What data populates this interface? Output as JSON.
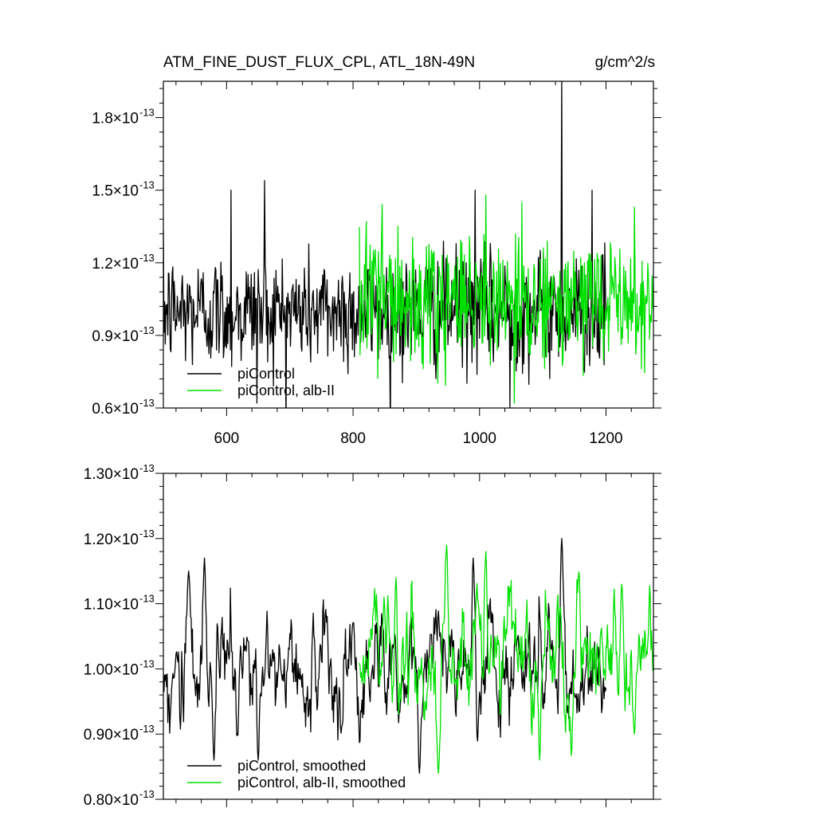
{
  "figure": {
    "title": "ATM_FINE_DUST_FLUX_CPL, ATL_18N-49N",
    "units": "g/cm^2/s"
  },
  "colors": {
    "series_1": "#000000",
    "series_2": "#00e000"
  },
  "chart_data": [
    {
      "type": "line",
      "xlim": [
        500,
        1275
      ],
      "ylim": [
        6e-14,
        1.95e-13
      ],
      "x_ticks": [
        600,
        800,
        1000,
        1200
      ],
      "x_tick_labels": [
        "600",
        "800",
        "1000",
        "1200"
      ],
      "y_ticks": [
        {
          "mantissa": "0.6",
          "exponent": "-13",
          "value": 6e-14
        },
        {
          "mantissa": "0.9",
          "exponent": "-13",
          "value": 9e-14
        },
        {
          "mantissa": "1.2",
          "exponent": "-13",
          "value": 1.2e-13
        },
        {
          "mantissa": "1.5",
          "exponent": "-13",
          "value": 1.5e-13
        },
        {
          "mantissa": "1.8",
          "exponent": "-13",
          "value": 1.8e-13
        }
      ],
      "times_symbol": "×",
      "legend_placement": "bottom-left",
      "series": [
        {
          "name": "piControl",
          "color": "#000000",
          "x_start": 500,
          "x_end": 1200,
          "mean": 1e-13,
          "noise_sd": 1.2e-14,
          "smoothing": 0.0,
          "peaks": [
            {
              "x": 607,
              "y": 1.5e-13
            },
            {
              "x": 660,
              "y": 1.54e-13
            },
            {
              "x": 648,
              "y": 6.2e-14
            },
            {
              "x": 993,
              "y": 1.5e-13
            },
            {
              "x": 1048,
              "y": 6e-14
            },
            {
              "x": 1130,
              "y": 1.97e-13
            },
            {
              "x": 1178,
              "y": 1.5e-13
            }
          ]
        },
        {
          "name": "piControl, alb-II",
          "color": "#00e000",
          "x_start": 810,
          "x_end": 1275,
          "mean": 1.03e-13,
          "noise_sd": 1.3e-14,
          "smoothing": 0.0,
          "peaks": [
            {
              "x": 1010,
              "y": 1.48e-13
            },
            {
              "x": 1245,
              "y": 1.43e-13
            },
            {
              "x": 1055,
              "y": 6.2e-14
            }
          ]
        }
      ]
    },
    {
      "type": "line",
      "xlim": [
        500,
        1275
      ],
      "ylim": [
        8e-14,
        1.3e-13
      ],
      "x_ticks": [
        600,
        800,
        1000,
        1200
      ],
      "x_tick_labels": [],
      "y_ticks": [
        {
          "mantissa": "0.80",
          "exponent": "-13",
          "value": 8e-14
        },
        {
          "mantissa": "0.90",
          "exponent": "-13",
          "value": 9e-14
        },
        {
          "mantissa": "1.00",
          "exponent": "-13",
          "value": 1e-13
        },
        {
          "mantissa": "1.10",
          "exponent": "-13",
          "value": 1.1e-13
        },
        {
          "mantissa": "1.20",
          "exponent": "-13",
          "value": 1.2e-13
        },
        {
          "mantissa": "1.30",
          "exponent": "-13",
          "value": 1.3e-13
        }
      ],
      "times_symbol": "×",
      "legend_placement": "bottom-left",
      "series": [
        {
          "name": "piControl, smoothed",
          "color": "#000000",
          "x_start": 500,
          "x_end": 1200,
          "mean": 1e-13,
          "noise_sd": 5e-15,
          "smoothing": 0.8,
          "peaks": [
            {
              "x": 540,
              "y": 1.15e-13
            },
            {
              "x": 565,
              "y": 1.17e-13
            },
            {
              "x": 580,
              "y": 8.6e-14
            },
            {
              "x": 650,
              "y": 8.6e-14
            },
            {
              "x": 905,
              "y": 8.4e-14
            },
            {
              "x": 990,
              "y": 1.17e-13
            },
            {
              "x": 1130,
              "y": 1.2e-13
            }
          ]
        },
        {
          "name": "piControl, alb-II, smoothed",
          "color": "#00e000",
          "x_start": 810,
          "x_end": 1275,
          "mean": 1.02e-13,
          "noise_sd": 5e-15,
          "smoothing": 0.8,
          "peaks": [
            {
              "x": 868,
              "y": 1.14e-13
            },
            {
              "x": 948,
              "y": 1.19e-13
            },
            {
              "x": 935,
              "y": 8.4e-14
            },
            {
              "x": 1010,
              "y": 1.18e-13
            },
            {
              "x": 1095,
              "y": 8.6e-14
            },
            {
              "x": 1225,
              "y": 1.13e-13
            },
            {
              "x": 1245,
              "y": 9e-14
            }
          ]
        }
      ]
    }
  ]
}
